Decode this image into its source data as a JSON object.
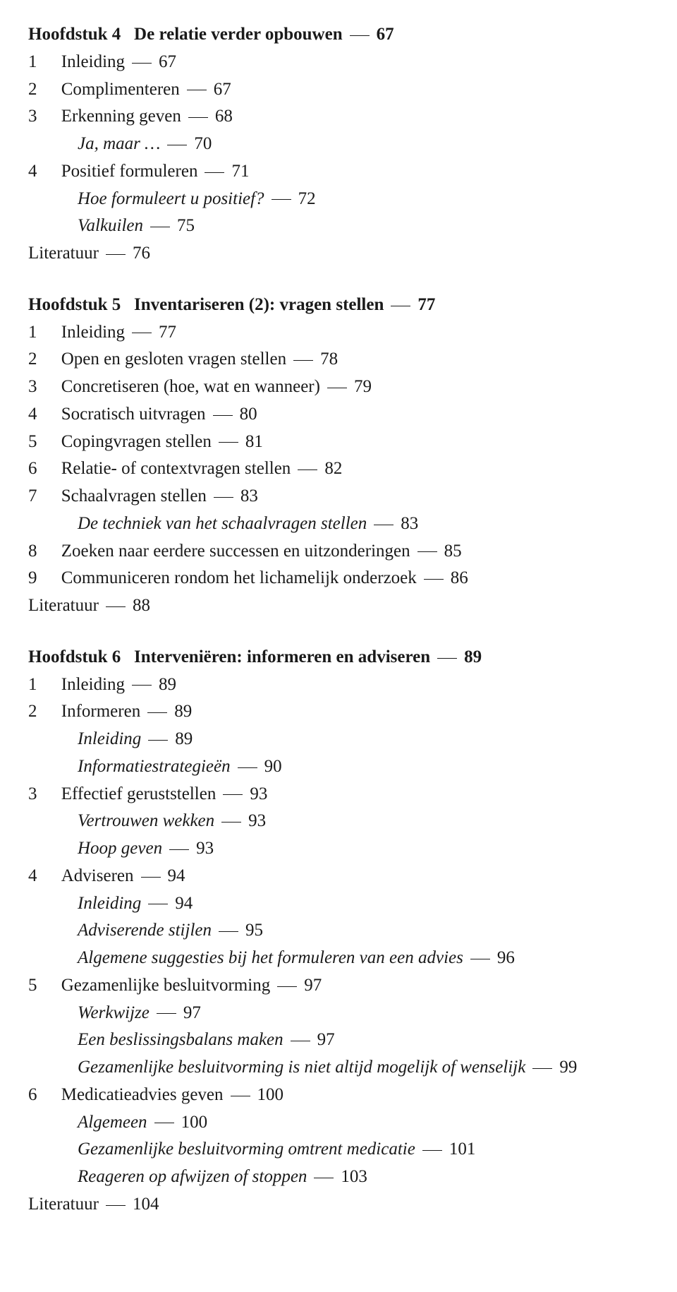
{
  "chapters": [
    {
      "heading_prefix": "Hoofdstuk 4",
      "heading_title": "De relatie verder opbouwen",
      "heading_page": "67",
      "lines": [
        {
          "type": "entry",
          "num": "1",
          "text": "Inleiding",
          "page": "67"
        },
        {
          "type": "entry",
          "num": "2",
          "text": "Complimenteren",
          "page": "67"
        },
        {
          "type": "entry",
          "num": "3",
          "text": "Erkenning geven",
          "page": "68"
        },
        {
          "type": "sub",
          "text": "Ja, maar …",
          "page": "70"
        },
        {
          "type": "entry",
          "num": "4",
          "text": "Positief formuleren",
          "page": "71"
        },
        {
          "type": "sub",
          "text": "Hoe formuleert u positief?",
          "page": "72"
        },
        {
          "type": "sub",
          "text": "Valkuilen",
          "page": "75"
        },
        {
          "type": "lit",
          "text": "Literatuur",
          "page": "76"
        }
      ]
    },
    {
      "heading_prefix": "Hoofdstuk 5",
      "heading_title": "Inventariseren (2): vragen stellen",
      "heading_page": "77",
      "lines": [
        {
          "type": "entry",
          "num": "1",
          "text": "Inleiding",
          "page": "77"
        },
        {
          "type": "entry",
          "num": "2",
          "text": "Open en gesloten vragen stellen",
          "page": "78"
        },
        {
          "type": "entry",
          "num": "3",
          "text": "Concretiseren (hoe, wat en wanneer)",
          "page": "79"
        },
        {
          "type": "entry",
          "num": "4",
          "text": "Socratisch uitvragen",
          "page": "80"
        },
        {
          "type": "entry",
          "num": "5",
          "text": "Copingvragen stellen",
          "page": "81"
        },
        {
          "type": "entry",
          "num": "6",
          "text": "Relatie- of contextvragen stellen",
          "page": "82"
        },
        {
          "type": "entry",
          "num": "7",
          "text": "Schaalvragen stellen",
          "page": "83"
        },
        {
          "type": "sub",
          "text": "De techniek van het schaalvragen stellen",
          "page": "83"
        },
        {
          "type": "entry",
          "num": "8",
          "text": "Zoeken naar eerdere successen en uitzonderingen",
          "page": "85"
        },
        {
          "type": "entry",
          "num": "9",
          "text": "Communiceren rondom het lichamelijk onderzoek",
          "page": "86"
        },
        {
          "type": "lit",
          "text": "Literatuur",
          "page": "88"
        }
      ]
    },
    {
      "heading_prefix": "Hoofdstuk 6",
      "heading_title": "Interveniëren: informeren en adviseren",
      "heading_page": "89",
      "lines": [
        {
          "type": "entry",
          "num": "1",
          "text": "Inleiding",
          "page": "89"
        },
        {
          "type": "entry",
          "num": "2",
          "text": "Informeren",
          "page": "89"
        },
        {
          "type": "sub",
          "text": "Inleiding",
          "page": "89"
        },
        {
          "type": "sub",
          "text": "Informatiestrategieën",
          "page": "90"
        },
        {
          "type": "entry",
          "num": "3",
          "text": "Effectief geruststellen",
          "page": "93"
        },
        {
          "type": "sub",
          "text": "Vertrouwen wekken",
          "page": "93"
        },
        {
          "type": "sub",
          "text": "Hoop geven",
          "page": "93"
        },
        {
          "type": "entry",
          "num": "4",
          "text": "Adviseren",
          "page": "94"
        },
        {
          "type": "sub",
          "text": "Inleiding",
          "page": "94"
        },
        {
          "type": "sub",
          "text": "Adviserende stijlen",
          "page": "95"
        },
        {
          "type": "sub",
          "text": "Algemene suggesties bij het formuleren van een advies",
          "page": "96"
        },
        {
          "type": "entry",
          "num": "5",
          "text": "Gezamenlijke besluitvorming",
          "page": "97"
        },
        {
          "type": "sub",
          "text": "Werkwijze",
          "page": "97"
        },
        {
          "type": "sub",
          "text": "Een beslissingsbalans maken",
          "page": "97"
        },
        {
          "type": "sub",
          "text": "Gezamenlijke besluitvorming is niet altijd mogelijk of wenselijk",
          "page": "99"
        },
        {
          "type": "entry",
          "num": "6",
          "text": "Medicatieadvies geven",
          "page": "100"
        },
        {
          "type": "sub",
          "text": "Algemeen",
          "page": "100"
        },
        {
          "type": "sub",
          "text": "Gezamenlijke besluitvorming omtrent medicatie",
          "page": "101"
        },
        {
          "type": "sub",
          "text": "Reageren op afwijzen of stoppen",
          "page": "103"
        },
        {
          "type": "lit",
          "text": "Literatuur",
          "page": "104"
        }
      ]
    }
  ]
}
